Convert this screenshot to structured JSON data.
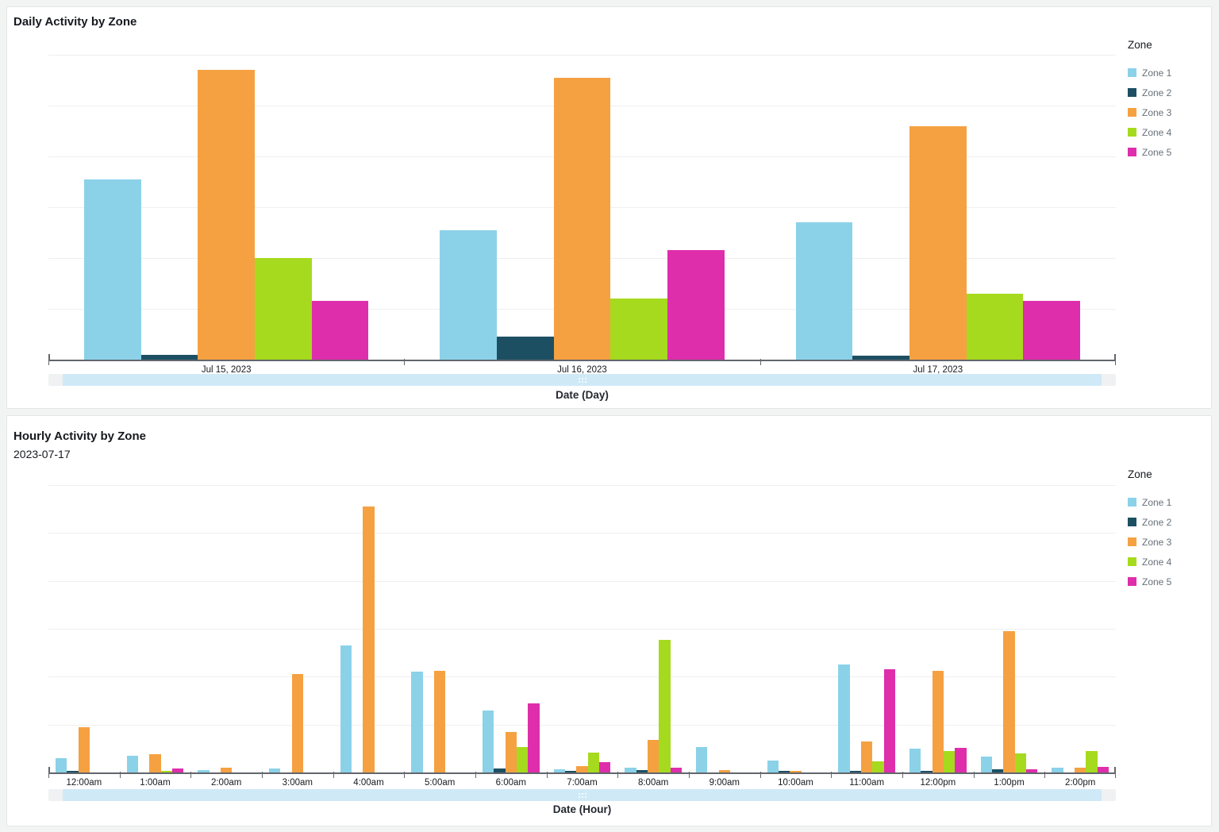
{
  "page": {
    "background": "#f2f3f3",
    "scrollbar_track_color": "#cfe9f7",
    "scrollbar_cap_color": "#f0f1f2"
  },
  "chart_data": [
    {
      "type": "bar",
      "title": "Daily Activity by Zone",
      "xlabel": "Date (Day)",
      "ylabel": "",
      "legend_title": "Zone",
      "legend_position": "right",
      "grid": true,
      "y_axis_labels_visible": false,
      "ylim": [
        0,
        120
      ],
      "categories": [
        "Jul 15, 2023",
        "Jul 16, 2023",
        "Jul 17, 2023"
      ],
      "series": [
        {
          "name": "Zone 1",
          "color": "#8BD2E9",
          "values": [
            71,
            51,
            54
          ]
        },
        {
          "name": "Zone 2",
          "color": "#1D4F63",
          "values": [
            2,
            9,
            1.5
          ]
        },
        {
          "name": "Zone 3",
          "color": "#F5A142",
          "values": [
            114,
            111,
            92
          ]
        },
        {
          "name": "Zone 4",
          "color": "#A6DA1E",
          "values": [
            40,
            24,
            26
          ]
        },
        {
          "name": "Zone 5",
          "color": "#DE2EAC",
          "values": [
            23,
            43,
            23
          ]
        }
      ]
    },
    {
      "type": "bar",
      "title": "Hourly Activity by Zone",
      "subtitle": "2023-07-17",
      "xlabel": "Date (Hour)",
      "ylabel": "",
      "legend_title": "Zone",
      "legend_position": "right",
      "grid": true,
      "y_axis_labels_visible": false,
      "ylim": [
        0,
        120
      ],
      "categories": [
        "12:00am",
        "1:00am",
        "2:00am",
        "3:00am",
        "4:00am",
        "5:00am",
        "6:00am",
        "7:00am",
        "8:00am",
        "9:00am",
        "10:00am",
        "11:00am",
        "12:00pm",
        "1:00pm",
        "2:00pm"
      ],
      "series": [
        {
          "name": "Zone 1",
          "color": "#8BD2E9",
          "values": [
            6,
            7,
            1,
            1.8,
            53,
            42,
            26,
            1.2,
            2,
            10.5,
            5,
            45,
            10,
            6.5,
            2
          ]
        },
        {
          "name": "Zone 2",
          "color": "#1D4F63",
          "values": [
            0.5,
            0,
            0,
            0,
            0,
            0,
            1.7,
            0.7,
            1,
            0,
            0.8,
            0.7,
            0.5,
            1.4,
            0
          ]
        },
        {
          "name": "Zone 3",
          "color": "#F5A142",
          "values": [
            19,
            7.5,
            2,
            41,
            111,
            42.5,
            17,
            2.6,
            13.5,
            1,
            0.5,
            13,
            42.5,
            59,
            2.1
          ]
        },
        {
          "name": "Zone 4",
          "color": "#A6DA1E",
          "values": [
            0,
            0.8,
            0,
            0,
            0,
            0,
            10.5,
            8.3,
            55.5,
            0,
            0,
            4.6,
            9,
            8,
            9
          ]
        },
        {
          "name": "Zone 5",
          "color": "#DE2EAC",
          "values": [
            0,
            1.7,
            0,
            0,
            0,
            0,
            29,
            4.3,
            2,
            0,
            0,
            43,
            10.4,
            1.4,
            2.2
          ]
        }
      ]
    }
  ]
}
